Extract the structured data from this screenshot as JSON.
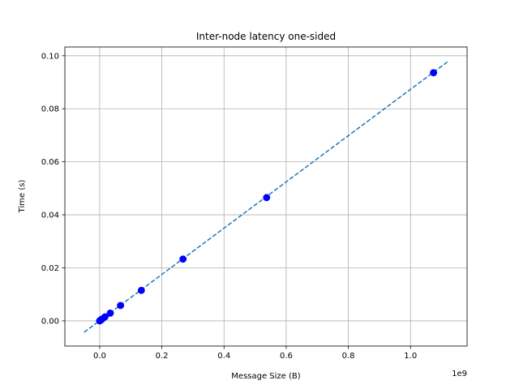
{
  "chart_data": {
    "type": "scatter",
    "title": "Inter-node latency one-sided",
    "xlabel": "Message Size (B)",
    "ylabel": "Time (s)",
    "x_scale_label": "1e9",
    "xlim": [
      -0.112,
      1.182
    ],
    "ylim": [
      -0.0095,
      0.1033
    ],
    "x_ticks": [
      0.0,
      0.2,
      0.4,
      0.6,
      0.8,
      1.0
    ],
    "x_tick_labels": [
      "0.0",
      "0.2",
      "0.4",
      "0.6",
      "0.8",
      "1.0"
    ],
    "y_ticks": [
      0.0,
      0.02,
      0.04,
      0.06,
      0.08,
      0.1
    ],
    "y_tick_labels": [
      "0.00",
      "0.02",
      "0.04",
      "0.06",
      "0.08",
      "0.10"
    ],
    "grid": true,
    "points": {
      "color": "#0000ff",
      "x": [
        0.0,
        0.001,
        0.002,
        0.004,
        0.008,
        0.017,
        0.034,
        0.067,
        0.134,
        0.268,
        0.537,
        1.074
      ],
      "y": [
        0.0,
        0.0001,
        0.0002,
        0.0003,
        0.0007,
        0.0015,
        0.0029,
        0.0058,
        0.0115,
        0.0233,
        0.0465,
        0.0936
      ]
    },
    "fit_line": {
      "style": "dashed",
      "color": "#1f77b4",
      "x": [
        -0.05,
        1.12
      ],
      "y": [
        -0.0043,
        0.0978
      ]
    }
  }
}
